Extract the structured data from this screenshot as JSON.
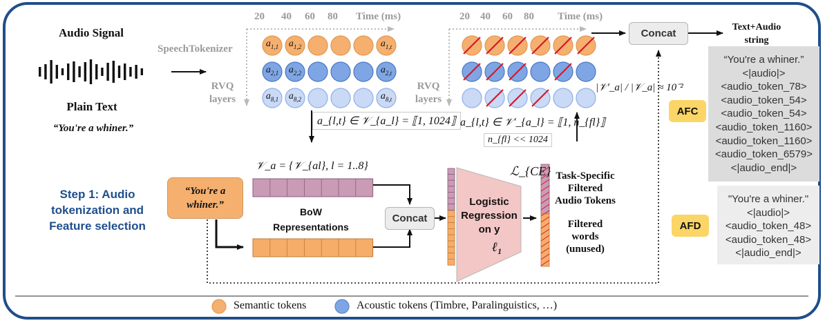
{
  "audio": {
    "title": "Audio Signal",
    "plain_text_title": "Plain Text",
    "plain_text_value": "“You're a whiner.”"
  },
  "tokenizer": {
    "label": "SpeechTokenizer",
    "rvq_label_left": [
      "RVQ",
      "layers"
    ],
    "rvq_label_right": [
      "RVQ",
      "layers"
    ],
    "time_ticks": [
      "20",
      "40",
      "60",
      "80"
    ],
    "time_label": "Time (ms)",
    "token_labels": {
      "row1": [
        "a1,1",
        "a1,2",
        "a1,t"
      ],
      "row2": [
        "a2,1",
        "a2,2",
        "a2,t"
      ],
      "row3": [
        "a8,1",
        "a8,2",
        "a8,t"
      ]
    },
    "vocab_left": "a_{l,t} ∈ 𝒱_{a_l} = ⟦1, 1024⟧",
    "vocab_right": "a_{l,t} ∈ 𝒱′_{a_l} = ⟦1, n_{fl}⟧",
    "nfl_constraint": "n_{fl} << 1024",
    "ratio": "|𝒱′_a| / |𝒱_a| ≈ 10⁻²"
  },
  "step": {
    "title_lines": [
      "Step 1: Audio",
      "tokenization and",
      "Feature selection"
    ],
    "quote_box": [
      "“You're a",
      "whiner.”"
    ],
    "vocab_set": "𝒱_a = {𝒱_{al}, l = 1..8}",
    "bow_lines": [
      "BoW",
      "Representations"
    ],
    "concat_mid": "Concat",
    "concat_top": "Concat",
    "logreg_lines": [
      "Logistic",
      "Regression",
      "on y"
    ],
    "l1": "ℓ₁",
    "loss": "ℒ_{CE}",
    "task_specific_lines": [
      "Task-Specific",
      "Filtered",
      "Audio Tokens"
    ],
    "filtered_words_lines": [
      "Filtered",
      "words",
      "(unused)"
    ]
  },
  "output": {
    "title_lines": [
      "Text+Audio",
      "string"
    ],
    "afc_label": "AFC",
    "afd_label": "AFD",
    "afc_tokens": [
      "“You're a whiner.”",
      "<|audio|>",
      "<audio_token_78>",
      "<audio_token_54>",
      "<audio_token_54>",
      "<audio_token_1160>",
      "<audio_token_1160>",
      "<audio_token_6579>",
      "<|audio_end|>"
    ],
    "afd_tokens": [
      "\"You're a whiner.\"",
      "<|audio|>",
      "<audio_token_48>",
      "<audio_token_48>",
      "<|audio_end|>"
    ]
  },
  "legend": {
    "semantic": "Semantic tokens",
    "acoustic": "Acoustic tokens (Timbre, Paralinguistics, …)"
  },
  "colors": {
    "semantic": "#f5b06f",
    "acoustic": "#7fa6e4",
    "acoustic_light": "#c9d9f6",
    "frame": "#1f4e8c",
    "bow_semantic": "#f7ad6a",
    "bow_acoustic": "#c99bb5",
    "logreg": "#f2c7c5"
  }
}
